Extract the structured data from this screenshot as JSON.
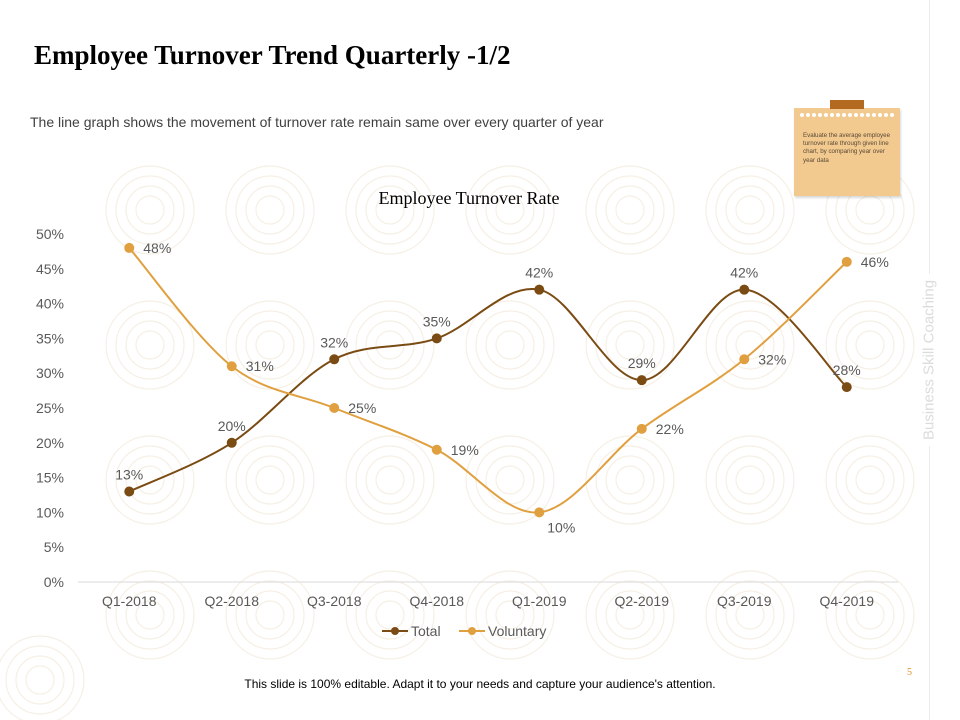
{
  "slide": {
    "title": "Employee Turnover Trend Quarterly -1/2",
    "subtitle": "The line graph shows the movement of turnover rate remain same over every quarter of year",
    "note": "Evaluate the average employee turnover rate through given line chart, by comparing year over year data",
    "side_label": "Business Skill Coaching",
    "footer": "This slide is 100% editable. Adapt it to your needs and capture your audience's attention.",
    "page_number": "5"
  },
  "colors": {
    "total": "#7a4b12",
    "voluntary": "#e0a040",
    "axis": "#d9d9d9",
    "text": "#595959"
  },
  "chart_data": {
    "type": "line",
    "title": "Employee Turnover Rate",
    "categories": [
      "Q1-2018",
      "Q2-2018",
      "Q3-2018",
      "Q4-2018",
      "Q1-2019",
      "Q2-2019",
      "Q3-2019",
      "Q4-2019"
    ],
    "series": [
      {
        "name": "Total",
        "values": [
          13,
          20,
          32,
          35,
          42,
          29,
          42,
          28
        ]
      },
      {
        "name": "Voluntary",
        "values": [
          48,
          31,
          25,
          19,
          10,
          22,
          32,
          46
        ]
      }
    ],
    "ylim": [
      0,
      50
    ],
    "yticks": [
      "0%",
      "5%",
      "10%",
      "15%",
      "20%",
      "25%",
      "30%",
      "35%",
      "40%",
      "45%",
      "50%"
    ],
    "value_suffix": "%",
    "xlabel": "",
    "ylabel": "",
    "legend_position": "bottom",
    "grid": false
  }
}
